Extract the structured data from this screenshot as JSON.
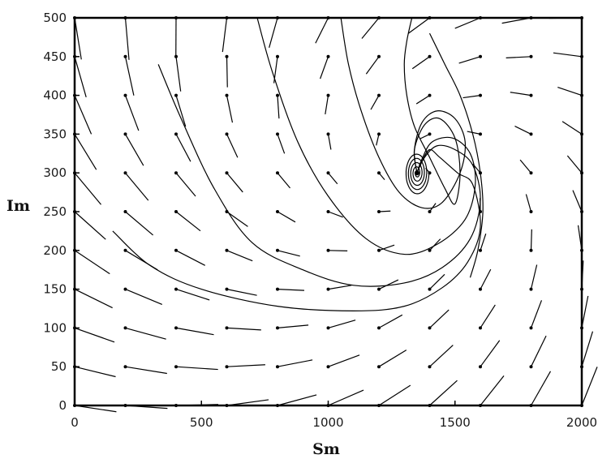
{
  "chart_data": {
    "type": "vector-field",
    "title": "",
    "xlabel": "Sm",
    "ylabel": "Im",
    "xlim": [
      0,
      2000
    ],
    "ylim": [
      0,
      500
    ],
    "x_ticks": [
      "0",
      "500",
      "1000",
      "1500",
      "2000"
    ],
    "y_ticks": [
      "0",
      "50",
      "100",
      "150",
      "200",
      "250",
      "300",
      "350",
      "400",
      "450",
      "500"
    ],
    "grid": false,
    "equilibrium": [
      1350,
      300
    ],
    "field": {
      "x_values": [
        0,
        200,
        400,
        600,
        800,
        1000,
        1200,
        1400,
        1600,
        1800,
        2000
      ],
      "y_values": [
        0,
        50,
        100,
        150,
        200,
        250,
        300,
        350,
        400,
        450,
        500
      ]
    },
    "trajectories": [
      {
        "points": [
          [
            150,
            225
          ],
          [
            300,
            180
          ],
          [
            500,
            150
          ],
          [
            800,
            128
          ],
          [
            1100,
            122
          ],
          [
            1300,
            128
          ],
          [
            1450,
            152
          ],
          [
            1550,
            185
          ],
          [
            1600,
            230
          ],
          [
            1570,
            285
          ],
          [
            1510,
            300
          ],
          [
            1440,
            320
          ],
          [
            1400,
            330
          ],
          [
            1370,
            315
          ],
          [
            1350,
            300
          ]
        ]
      },
      {
        "points": [
          [
            330,
            440
          ],
          [
            420,
            370
          ],
          [
            550,
            280
          ],
          [
            700,
            210
          ],
          [
            900,
            175
          ],
          [
            1100,
            155
          ],
          [
            1300,
            158
          ],
          [
            1450,
            178
          ],
          [
            1560,
            215
          ],
          [
            1600,
            265
          ],
          [
            1570,
            310
          ],
          [
            1500,
            330
          ],
          [
            1430,
            335
          ],
          [
            1380,
            320
          ],
          [
            1350,
            300
          ]
        ]
      },
      {
        "points": [
          [
            720,
            500
          ],
          [
            780,
            430
          ],
          [
            880,
            340
          ],
          [
            1000,
            270
          ],
          [
            1150,
            215
          ],
          [
            1300,
            195
          ],
          [
            1430,
            208
          ],
          [
            1540,
            240
          ],
          [
            1580,
            285
          ],
          [
            1560,
            325
          ],
          [
            1490,
            345
          ],
          [
            1410,
            340
          ],
          [
            1370,
            318
          ],
          [
            1350,
            300
          ]
        ]
      },
      {
        "points": [
          [
            1050,
            500
          ],
          [
            1080,
            440
          ],
          [
            1130,
            380
          ],
          [
            1200,
            320
          ],
          [
            1280,
            275
          ],
          [
            1370,
            255
          ],
          [
            1450,
            262
          ],
          [
            1520,
            300
          ],
          [
            1540,
            340
          ],
          [
            1500,
            370
          ],
          [
            1430,
            380
          ],
          [
            1370,
            365
          ],
          [
            1340,
            330
          ],
          [
            1350,
            300
          ]
        ]
      },
      {
        "points": [
          [
            1330,
            500
          ],
          [
            1310,
            470
          ],
          [
            1300,
            440
          ],
          [
            1310,
            400
          ],
          [
            1340,
            360
          ],
          [
            1400,
            320
          ],
          [
            1460,
            280
          ],
          [
            1500,
            260
          ],
          [
            1520,
            300
          ],
          [
            1500,
            345
          ],
          [
            1440,
            370
          ],
          [
            1380,
            362
          ],
          [
            1340,
            330
          ],
          [
            1350,
            300
          ]
        ]
      },
      {
        "points": [
          [
            1400,
            480
          ],
          [
            1460,
            440
          ],
          [
            1520,
            400
          ],
          [
            1570,
            350
          ],
          [
            1600,
            300
          ],
          [
            1610,
            250
          ],
          [
            1590,
            200
          ],
          [
            1560,
            165
          ]
        ]
      }
    ]
  }
}
